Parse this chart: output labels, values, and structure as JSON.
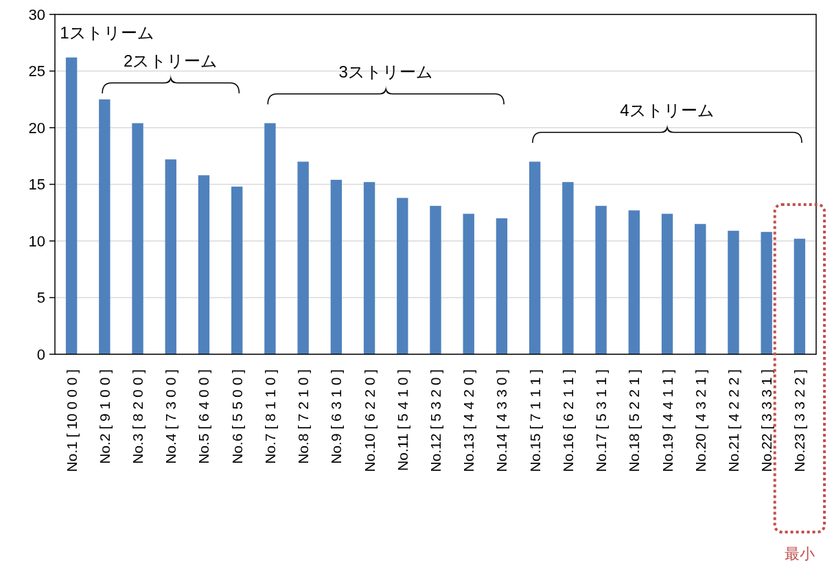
{
  "chart_data": {
    "type": "bar",
    "categories": [
      "No.1 [ 10 0 0 0 ]",
      "No.2 [ 9 1 0 0 ]",
      "No.3 [ 8 2 0 0 ]",
      "No.4 [ 7 3 0 0 ]",
      "No.5 [ 6 4 0 0 ]",
      "No.6 [ 5 5 0 0 ]",
      "No.7 [ 8 1 1 0 ]",
      "No.8 [ 7 2 1 0 ]",
      "No.9 [ 6 3 1 0 ]",
      "No.10 [ 6 2 2 0 ]",
      "No.11 [ 5 4 1 0 ]",
      "No.12 [ 5 3 2 0 ]",
      "No.13 [ 4 4 2 0 ]",
      "No.14 [ 4 3 3 0 ]",
      "No.15 [ 7 1 1 1 ]",
      "No.16 [ 6 2 1 1 ]",
      "No.17 [ 5 3 1 1 ]",
      "No.18 [ 5 2 2 1 ]",
      "No.19 [ 4 4 1 1 ]",
      "No.20 [ 4 3 2 1 ]",
      "No.21 [ 4 2 2 2 ]",
      "No.22 [ 3 3 3 1 ]",
      "No.23 [ 3 3 2 2 ]"
    ],
    "values": [
      26.2,
      22.5,
      20.4,
      17.2,
      15.8,
      14.8,
      20.4,
      17.0,
      15.4,
      15.2,
      13.8,
      13.1,
      12.4,
      12.0,
      17.0,
      15.2,
      13.1,
      12.7,
      12.4,
      11.5,
      10.9,
      10.8,
      10.2
    ],
    "color": "#4f81bd",
    "ylim": [
      0,
      30
    ],
    "yticks": [
      0,
      5,
      10,
      15,
      20,
      25,
      30
    ],
    "grid": "y",
    "annotations": [
      "1ストリーム",
      "2ストリーム",
      "3ストリーム",
      "4ストリーム",
      "最小"
    ]
  }
}
